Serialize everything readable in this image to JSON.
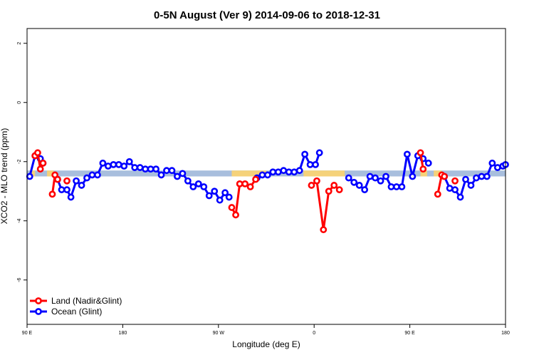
{
  "chart_data": {
    "type": "line",
    "title": "0-5N August (Ver 9)   2014-09-06 to 2018-12-31",
    "xlabel": "Longitude (deg E)",
    "ylabel": "XCO2 - MLO trend (ppm)",
    "xlim": [
      90,
      450
    ],
    "ylim": [
      -7.5,
      2.5
    ],
    "x_ticks": [
      90,
      162,
      234,
      306,
      378,
      450
    ],
    "x_tick_labels": [
      "90 E",
      "180",
      "90 W",
      "0",
      "90 E",
      "180"
    ],
    "y_ticks": [
      2,
      0,
      -2,
      -4,
      -6
    ],
    "y_tick_labels": [
      "2",
      "0",
      "-2",
      "-4",
      "-6"
    ],
    "grid": false,
    "legend_position": "bottom-left",
    "colors": {
      "land": "#ff0000",
      "ocean": "#0000ff",
      "band_ocean": "#a8bedd",
      "band_land": "#f5d27a"
    },
    "bands": [
      {
        "y0": -2.5,
        "y1": -2.3,
        "kind": "ocean",
        "x_start": 90,
        "x_end": 450
      },
      {
        "y0": -2.5,
        "y1": -2.3,
        "kind": "land",
        "x_start": 93,
        "x_end": 96
      },
      {
        "y0": -2.5,
        "y1": -2.3,
        "kind": "land",
        "x_start": 105,
        "x_end": 110
      },
      {
        "y0": -2.5,
        "y1": -2.3,
        "kind": "land",
        "x_start": 244,
        "x_end": 270
      },
      {
        "y0": -2.5,
        "y1": -2.3,
        "kind": "land",
        "x_start": 298,
        "x_end": 329
      },
      {
        "y0": -2.5,
        "y1": -2.3,
        "kind": "land",
        "x_start": 386,
        "x_end": 391
      },
      {
        "y0": -2.5,
        "y1": -2.3,
        "kind": "land",
        "x_start": 396,
        "x_end": 402
      }
    ],
    "series": [
      {
        "name": "Ocean (Glint)",
        "key": "ocean",
        "segments": [
          [
            [
              92,
              -2.5
            ],
            [
              96,
              -1.8
            ],
            [
              100,
              -1.9
            ],
            [
              102,
              -2.05
            ]
          ],
          [
            [
              113,
              -2.6
            ],
            [
              116,
              -2.95
            ],
            [
              120,
              -2.95
            ],
            [
              123,
              -3.2
            ],
            [
              127,
              -2.65
            ],
            [
              131,
              -2.8
            ],
            [
              135,
              -2.55
            ],
            [
              139,
              -2.45
            ],
            [
              143,
              -2.45
            ],
            [
              147,
              -2.05
            ],
            [
              151,
              -2.15
            ],
            [
              155,
              -2.1
            ],
            [
              159,
              -2.1
            ],
            [
              163,
              -2.15
            ],
            [
              167,
              -2.0
            ],
            [
              171,
              -2.2
            ],
            [
              175,
              -2.2
            ],
            [
              179,
              -2.25
            ],
            [
              183,
              -2.25
            ],
            [
              187,
              -2.25
            ],
            [
              191,
              -2.45
            ],
            [
              195,
              -2.3
            ],
            [
              199,
              -2.3
            ],
            [
              203,
              -2.5
            ],
            [
              207,
              -2.4
            ],
            [
              211,
              -2.65
            ],
            [
              215,
              -2.85
            ],
            [
              219,
              -2.75
            ],
            [
              223,
              -2.85
            ],
            [
              227,
              -3.15
            ],
            [
              231,
              -3.0
            ],
            [
              235,
              -3.3
            ],
            [
              239,
              -3.05
            ],
            [
              242,
              -3.2
            ]
          ],
          [
            [
              263,
              -2.55
            ],
            [
              267,
              -2.45
            ],
            [
              271,
              -2.45
            ],
            [
              275,
              -2.35
            ],
            [
              279,
              -2.35
            ],
            [
              283,
              -2.3
            ],
            [
              287,
              -2.35
            ],
            [
              291,
              -2.35
            ],
            [
              295,
              -2.3
            ],
            [
              299,
              -1.75
            ],
            [
              303,
              -2.1
            ],
            [
              307,
              -2.1
            ],
            [
              310,
              -1.7
            ]
          ],
          [
            [
              332,
              -2.55
            ],
            [
              336,
              -2.7
            ],
            [
              340,
              -2.8
            ],
            [
              344,
              -2.95
            ],
            [
              348,
              -2.5
            ],
            [
              352,
              -2.55
            ],
            [
              356,
              -2.65
            ],
            [
              360,
              -2.5
            ],
            [
              364,
              -2.85
            ],
            [
              368,
              -2.85
            ],
            [
              372,
              -2.85
            ],
            [
              376,
              -1.75
            ],
            [
              380,
              -2.5
            ],
            [
              384,
              -1.8
            ],
            [
              388,
              -1.9
            ],
            [
              392,
              -2.05
            ]
          ],
          [
            [
              404,
              -2.5
            ],
            [
              408,
              -2.9
            ],
            [
              412,
              -2.95
            ],
            [
              416,
              -3.2
            ],
            [
              420,
              -2.6
            ],
            [
              424,
              -2.8
            ],
            [
              428,
              -2.55
            ],
            [
              432,
              -2.5
            ],
            [
              436,
              -2.5
            ],
            [
              440,
              -2.05
            ],
            [
              444,
              -2.2
            ],
            [
              448,
              -2.15
            ],
            [
              451,
              -2.1
            ]
          ]
        ]
      },
      {
        "name": "Land (Nadir&Glint)",
        "key": "land",
        "segments": [
          [
            [
              96,
              -1.8
            ],
            [
              98,
              -1.7
            ],
            [
              100,
              -2.25
            ],
            [
              102,
              -2.05
            ]
          ],
          [
            [
              109,
              -3.1
            ],
            [
              111,
              -2.45
            ],
            [
              113,
              -2.6
            ]
          ],
          [
            [
              120,
              -2.65
            ]
          ],
          [
            [
              244,
              -3.55
            ],
            [
              247,
              -3.8
            ],
            [
              250,
              -2.75
            ],
            [
              254,
              -2.75
            ],
            [
              258,
              -2.85
            ],
            [
              262,
              -2.6
            ]
          ],
          [
            [
              304,
              -2.8
            ],
            [
              308,
              -2.65
            ],
            [
              313,
              -4.3
            ],
            [
              317,
              -3.0
            ],
            [
              321,
              -2.8
            ],
            [
              325,
              -2.95
            ]
          ],
          [
            [
              386,
              -1.7
            ],
            [
              388,
              -2.25
            ]
          ],
          [
            [
              399,
              -3.1
            ],
            [
              402,
              -2.45
            ],
            [
              404,
              -2.5
            ]
          ],
          [
            [
              412,
              -2.65
            ]
          ]
        ]
      }
    ],
    "legend": [
      {
        "label": "Land (Nadir&Glint)",
        "key": "land"
      },
      {
        "label": "Ocean (Glint)",
        "key": "ocean"
      }
    ]
  }
}
